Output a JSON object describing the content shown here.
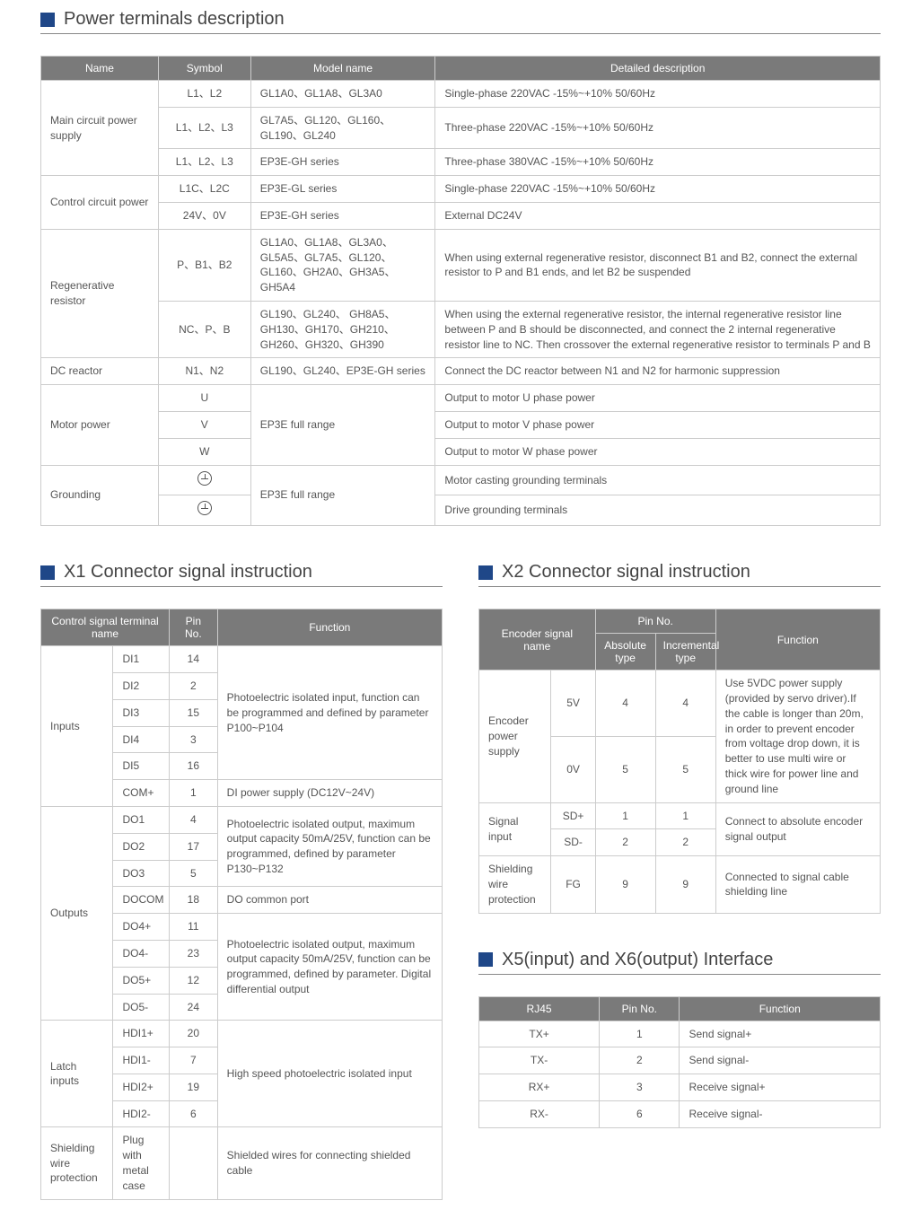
{
  "sections": {
    "power": "Power terminals description",
    "x1": "X1 Connector signal instruction",
    "x2": "X2 Connector signal instruction",
    "x5x6": "X5(input) and X6(output) Interface"
  },
  "colors": {
    "header_bg": "#7a7a7a",
    "marker": "#1f4788",
    "border": "#cccccc"
  },
  "power_table": {
    "headers": [
      "Name",
      "Symbol",
      "Model name",
      "Detailed description"
    ],
    "rows": [
      {
        "name": "Main circuit power supply",
        "name_rs": 3,
        "symbol": "L1、L2",
        "model": "GL1A0、GL1A8、GL3A0",
        "desc": "Single-phase 220VAC -15%~+10% 50/60Hz"
      },
      {
        "symbol": "L1、L2、L3",
        "model": "GL7A5、GL120、GL160、GL190、GL240",
        "desc": "Three-phase 220VAC -15%~+10% 50/60Hz"
      },
      {
        "symbol": "L1、L2、L3",
        "model": "EP3E-GH series",
        "desc": "Three-phase 380VAC -15%~+10% 50/60Hz"
      },
      {
        "name": "Control circuit power",
        "name_rs": 2,
        "symbol": "L1C、L2C",
        "model": "EP3E-GL series",
        "desc": "Single-phase 220VAC -15%~+10% 50/60Hz"
      },
      {
        "symbol": "24V、0V",
        "model": "EP3E-GH series",
        "desc": "External DC24V"
      },
      {
        "name": "Regenerative resistor",
        "name_rs": 2,
        "symbol": "P、B1、B2",
        "model": "GL1A0、GL1A8、GL3A0、GL5A5、GL7A5、GL120、GL160、GH2A0、GH3A5、GH5A4",
        "desc": "When using external regenerative resistor, disconnect B1 and B2,\nconnect the external resistor to P and B1 ends, and let B2 be suspended"
      },
      {
        "symbol": "NC、P、B",
        "model": "GL190、GL240、\nGH8A5、GH130、GH170、GH210、GH260、GH320、GH390",
        "desc": "When using the external regenerative resistor, the internal regenerative resistor line between P and B should be disconnected, and connect the 2 internal regenerative resistor line to NC. Then crossover the external regenerative resistor to terminals P and B"
      },
      {
        "name": "DC reactor",
        "name_rs": 1,
        "symbol": "N1、N2",
        "model": "GL190、GL240、EP3E-GH series",
        "desc": "Connect the DC reactor between N1 and N2 for harmonic suppression"
      },
      {
        "name": "Motor power",
        "name_rs": 3,
        "symbol": "U",
        "model": "EP3E full range",
        "model_rs": 3,
        "desc": "Output to motor U phase power"
      },
      {
        "symbol": "V",
        "desc": "Output to motor V phase power"
      },
      {
        "symbol": "W",
        "desc": "Output to motor W phase power"
      },
      {
        "name": "Grounding",
        "name_rs": 2,
        "symbol": "__EARTH__",
        "model": "EP3E full range",
        "model_rs": 2,
        "desc": "Motor casting grounding terminals"
      },
      {
        "symbol": "__EARTH__",
        "desc": "Drive grounding terminals"
      }
    ],
    "col_widths": [
      "14%",
      "11%",
      "22%",
      "53%"
    ]
  },
  "x1_table": {
    "headers": [
      "Control signal terminal name",
      "",
      "Pin No.",
      "Function"
    ],
    "col_widths": [
      "18%",
      "14%",
      "12%",
      "56%"
    ],
    "rows": [
      {
        "g": "Inputs",
        "g_rs": 6,
        "n": "DI1",
        "p": "14",
        "f": "Photoelectric isolated input, function can be programmed and defined by parameter P100~P104",
        "f_rs": 5
      },
      {
        "n": "DI2",
        "p": "2"
      },
      {
        "n": "DI3",
        "p": "15"
      },
      {
        "n": "DI4",
        "p": "3"
      },
      {
        "n": "DI5",
        "p": "16"
      },
      {
        "n": "COM+",
        "p": "1",
        "f": "DI power supply (DC12V~24V)"
      },
      {
        "g": "Outputs",
        "g_rs": 8,
        "n": "DO1",
        "p": "4",
        "f": "Photoelectric isolated output, maximum output capacity 50mA/25V, function can be programmed,  defined by parameter P130~P132",
        "f_rs": 3
      },
      {
        "n": "DO2",
        "p": "17"
      },
      {
        "n": "DO3",
        "p": "5"
      },
      {
        "n": "DOCOM",
        "p": "18",
        "f": "DO common port"
      },
      {
        "n": "DO4+",
        "p": "11",
        "f": "Photoelectric isolated output, maximum output capacity 50mA/25V, function can be programmed, defined by parameter. Digital differential output",
        "f_rs": 4
      },
      {
        "n": "DO4-",
        "p": "23"
      },
      {
        "n": "DO5+",
        "p": "12"
      },
      {
        "n": "DO5-",
        "p": "24"
      },
      {
        "g": "Latch inputs",
        "g_rs": 4,
        "n": "HDI1+",
        "p": "20",
        "f": "High speed photoelectric isolated input",
        "f_rs": 4
      },
      {
        "n": "HDI1-",
        "p": "7"
      },
      {
        "n": "HDI2+",
        "p": "19"
      },
      {
        "n": "HDI2-",
        "p": "6"
      },
      {
        "g": "Shielding wire protection",
        "g_rs": 1,
        "n": "Plug with metal case",
        "p": "",
        "f": "Shielded wires for connecting shielded cable"
      }
    ]
  },
  "x2_table": {
    "headers": {
      "name": "Encoder signal name",
      "pin": "Pin No.",
      "abs": "Absolute type",
      "inc": "Incremental type",
      "func": "Function"
    },
    "col_widths": [
      "18%",
      "11%",
      "15%",
      "15%",
      "41%"
    ],
    "rows": [
      {
        "g": "Encoder power supply",
        "g_rs": 2,
        "n": "5V",
        "a": "4",
        "i": "4",
        "f": "Use 5VDC power supply (provided by servo driver).If the cable is longer than 20m, in order to prevent encoder from voltage drop down, it is better to use multi wire or thick wire for power line and ground line",
        "f_rs": 2
      },
      {
        "n": "0V",
        "a": "5",
        "i": "5"
      },
      {
        "g": "Signal input",
        "g_rs": 2,
        "n": "SD+",
        "a": "1",
        "i": "1",
        "f": "Connect to absolute encoder signal output",
        "f_rs": 2
      },
      {
        "n": "SD-",
        "a": "2",
        "i": "2"
      },
      {
        "g": "Shielding wire protection",
        "g_rs": 1,
        "n": "FG",
        "a": "9",
        "i": "9",
        "f": "Connected to signal cable shielding line"
      }
    ]
  },
  "x5x6_table": {
    "headers": [
      "RJ45",
      "Pin No.",
      "Function"
    ],
    "col_widths": [
      "30%",
      "20%",
      "50%"
    ],
    "rows": [
      {
        "n": "TX+",
        "p": "1",
        "f": "Send signal+"
      },
      {
        "n": "TX-",
        "p": "2",
        "f": "Send signal-"
      },
      {
        "n": "RX+",
        "p": "3",
        "f": "Receive signal+"
      },
      {
        "n": "RX-",
        "p": "6",
        "f": "Receive signal-"
      }
    ]
  }
}
